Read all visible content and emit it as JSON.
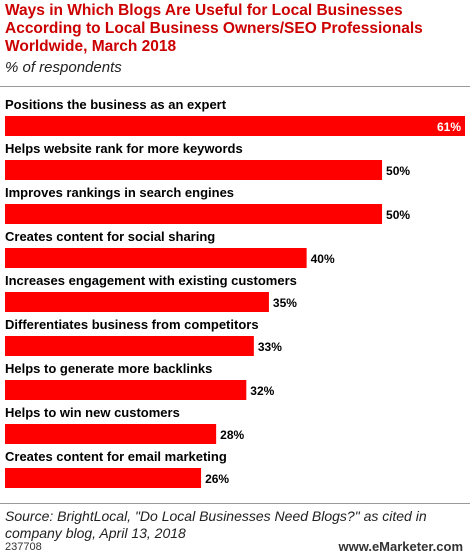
{
  "header": {
    "title": "Ways in Which Blogs Are Useful for Local Businesses According to Local Business Owners/SEO Professionals Worldwide, March 2018",
    "subtitle": "% of respondents"
  },
  "colors": {
    "bar": "#ff0000",
    "title": "#cc0000"
  },
  "chart_data": {
    "type": "bar",
    "orientation": "horizontal",
    "categories": [
      "Positions the business as an expert",
      "Helps website rank for more keywords",
      "Improves rankings in search engines",
      "Creates content for social sharing",
      "Increases engagement with existing customers",
      "Differentiates business from competitors",
      "Helps to generate more backlinks",
      "Helps to win new customers",
      "Creates content for email marketing"
    ],
    "values": [
      61,
      50,
      50,
      40,
      35,
      33,
      32,
      28,
      26
    ],
    "value_labels": [
      "61%",
      "50%",
      "50%",
      "40%",
      "35%",
      "33%",
      "32%",
      "28%",
      "26%"
    ],
    "xlim": [
      0,
      61
    ],
    "grid": false,
    "legend": "none"
  },
  "footer": {
    "source": "Source: BrightLocal, \"Do Local Businesses Need Blogs?\" as cited in company blog, April 13, 2018",
    "id": "237708",
    "brand": "www.eMarketer.com"
  }
}
